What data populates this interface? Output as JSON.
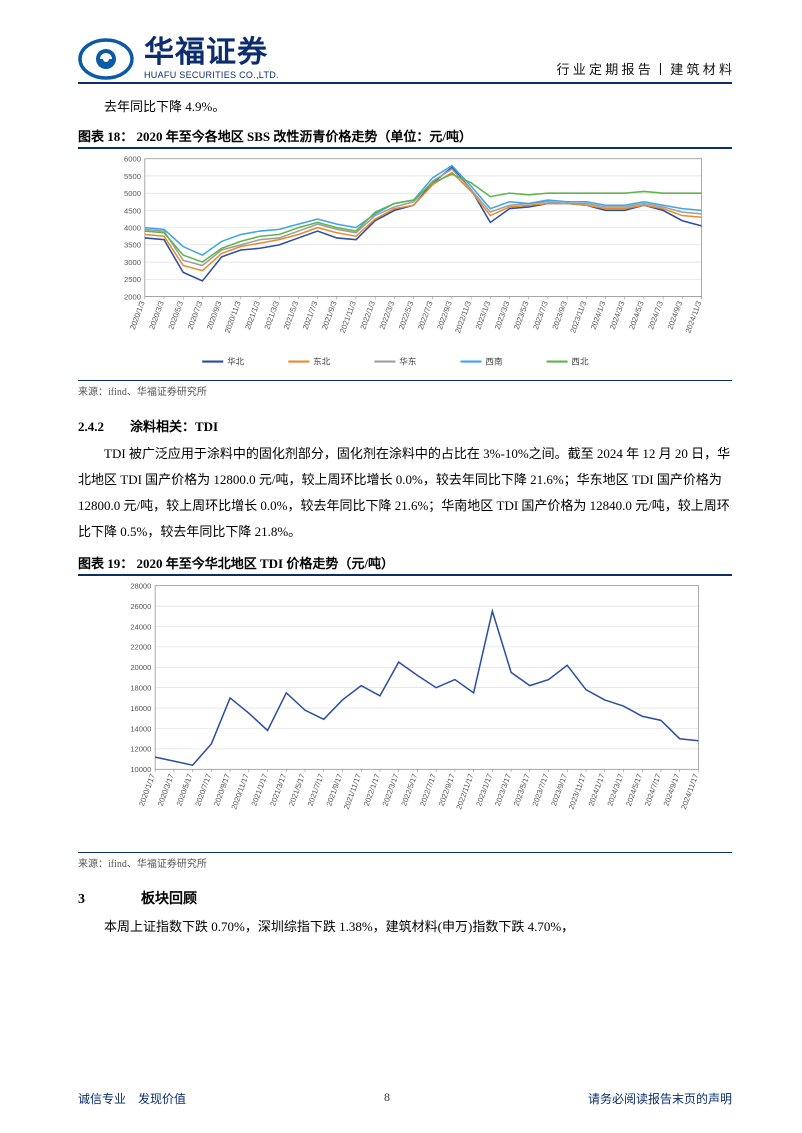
{
  "header": {
    "company_cn": "华福证券",
    "company_en": "HUAFU SECURITIES CO.,LTD.",
    "right": "行 业 定 期 报 告 丨 建 筑 材 料",
    "logo_color": "#0b5aa7",
    "logo_inner": "#ffffff"
  },
  "intro_line": "去年同比下降 4.9%。",
  "chart18": {
    "title": "图表 18： 2020 年至今各地区 SBS 改性沥青价格走势（单位：元/吨）",
    "source": "来源：ifind、华福证券研究所",
    "type": "line",
    "ylim": [
      2000,
      6000
    ],
    "ytick_step": 500,
    "ytick_labels": [
      "2000",
      "2500",
      "3000",
      "3500",
      "4000",
      "4500",
      "5000",
      "5500",
      "6000"
    ],
    "bg": "#ffffff",
    "grid": "#d9d9d9",
    "axis": "#8f8f8f",
    "tick_font": 8,
    "legend_font": 9,
    "xlabels": [
      "2020/1/3",
      "2020/3/3",
      "2020/5/3",
      "2020/7/3",
      "2020/9/3",
      "2020/11/3",
      "2021/1/3",
      "2021/3/3",
      "2021/5/3",
      "2021/7/3",
      "2021/9/3",
      "2021/11/3",
      "2022/1/3",
      "2022/3/3",
      "2022/5/3",
      "2022/7/3",
      "2022/9/3",
      "2022/11/3",
      "2023/1/3",
      "2023/3/3",
      "2023/5/3",
      "2023/7/3",
      "2023/9/3",
      "2023/11/3",
      "2024/1/3",
      "2024/3/3",
      "2024/5/3",
      "2024/7/3",
      "2024/9/3",
      "2024/11/3"
    ],
    "series": [
      {
        "name": "华北",
        "color": "#2b4ea0",
        "values": [
          3700,
          3650,
          2700,
          2450,
          3150,
          3350,
          3400,
          3500,
          3700,
          3900,
          3700,
          3650,
          4200,
          4500,
          4650,
          5300,
          5750,
          5100,
          4150,
          4550,
          4600,
          4700,
          4700,
          4650,
          4500,
          4500,
          4650,
          4500,
          4200,
          4050
        ]
      },
      {
        "name": "东北",
        "color": "#e88b2e",
        "values": [
          3800,
          3750,
          2900,
          2750,
          3250,
          3450,
          3550,
          3650,
          3800,
          4000,
          3850,
          3750,
          4250,
          4550,
          4650,
          5250,
          5600,
          5050,
          4350,
          4600,
          4650,
          4700,
          4700,
          4650,
          4550,
          4550,
          4650,
          4550,
          4350,
          4300
        ]
      },
      {
        "name": "华东",
        "color": "#9e9e9e",
        "values": [
          3950,
          3900,
          3050,
          2900,
          3350,
          3500,
          3650,
          3700,
          3900,
          4100,
          3950,
          3850,
          4350,
          4600,
          4750,
          5350,
          5700,
          5100,
          4450,
          4650,
          4700,
          4750,
          4700,
          4700,
          4600,
          4600,
          4700,
          4600,
          4450,
          4400
        ]
      },
      {
        "name": "西南",
        "color": "#3fa5e6",
        "values": [
          4000,
          3950,
          3450,
          3200,
          3600,
          3800,
          3900,
          3950,
          4100,
          4250,
          4100,
          4000,
          4400,
          4700,
          4800,
          5450,
          5800,
          5200,
          4550,
          4750,
          4700,
          4800,
          4750,
          4750,
          4650,
          4650,
          4750,
          4650,
          4550,
          4500
        ]
      },
      {
        "name": "西北",
        "color": "#5fb54a",
        "values": [
          3900,
          3850,
          3200,
          3000,
          3400,
          3600,
          3750,
          3800,
          4000,
          4150,
          4000,
          3900,
          4450,
          4700,
          4800,
          5300,
          5550,
          5300,
          4900,
          5000,
          4950,
          5000,
          5000,
          5000,
          5000,
          5000,
          5050,
          5000,
          5000,
          5000
        ]
      }
    ],
    "legend_items": [
      {
        "label": "华北",
        "color": "#2b4ea0"
      },
      {
        "label": "东北",
        "color": "#e88b2e"
      },
      {
        "label": "华东",
        "color": "#9e9e9e"
      },
      {
        "label": "西南",
        "color": "#3fa5e6"
      },
      {
        "label": "西北",
        "color": "#5fb54a"
      }
    ]
  },
  "sec242": {
    "heading": "2.4.2　　涂料相关：TDI",
    "para": "TDI 被广泛应用于涂料中的固化剂部分，固化剂在涂料中的占比在 3%-10%之间。截至 2024 年 12 月 20 日，华北地区 TDI 国产价格为 12800.0 元/吨，较上周环比增长 0.0%，较去年同比下降 21.6%；华东地区 TDI 国产价格为 12800.0 元/吨，较上周环比增长 0.0%，较去年同比下降 21.6%；华南地区 TDI 国产价格为 12840.0 元/吨，较上周环比下降 0.5%，较去年同比下降 21.8%。"
  },
  "chart19": {
    "title": "图表 19： 2020 年至今华北地区 TDI 价格走势（元/吨）",
    "source": "来源：ifind、华福证券研究所",
    "type": "line",
    "ylim": [
      10000,
      28000
    ],
    "ytick_step": 2000,
    "ytick_labels": [
      "10000",
      "12000",
      "14000",
      "16000",
      "18000",
      "20000",
      "22000",
      "24000",
      "26000",
      "28000"
    ],
    "bg": "#ffffff",
    "grid": "#d9d9d9",
    "axis": "#8f8f8f",
    "tick_font": 8,
    "xlabels": [
      "2020/1/17",
      "2020/3/17",
      "2020/5/17",
      "2020/7/17",
      "2020/9/17",
      "2020/11/17",
      "2021/1/17",
      "2021/3/17",
      "2021/5/17",
      "2021/7/17",
      "2021/9/17",
      "2021/11/17",
      "2022/1/17",
      "2022/3/17",
      "2022/5/17",
      "2022/7/17",
      "2022/9/17",
      "2022/11/17",
      "2023/1/17",
      "2023/3/17",
      "2023/5/17",
      "2023/7/17",
      "2023/9/17",
      "2023/11/17",
      "2024/1/17",
      "2024/3/17",
      "2024/5/17",
      "2024/7/17",
      "2024/9/17",
      "2024/11/17"
    ],
    "series": [
      {
        "name": "华北TDI",
        "color": "#2b4ea0",
        "values": [
          11200,
          10800,
          10400,
          12500,
          17000,
          15500,
          13800,
          17500,
          15800,
          14900,
          16800,
          18200,
          17200,
          20500,
          19200,
          18000,
          18800,
          17500,
          25500,
          19500,
          18200,
          18800,
          20200,
          17800,
          16800,
          16200,
          15200,
          14800,
          13000,
          12800
        ]
      }
    ]
  },
  "sec3": {
    "heading": "3　　　　板块回顾",
    "para": "本周上证指数下跌 0.70%，深圳综指下跌 1.38%，建筑材料(申万)指数下跌 4.70%，"
  },
  "footer": {
    "left": "诚信专业　发现价值",
    "page": "8",
    "right": "请务必阅读报告末页的声明"
  }
}
